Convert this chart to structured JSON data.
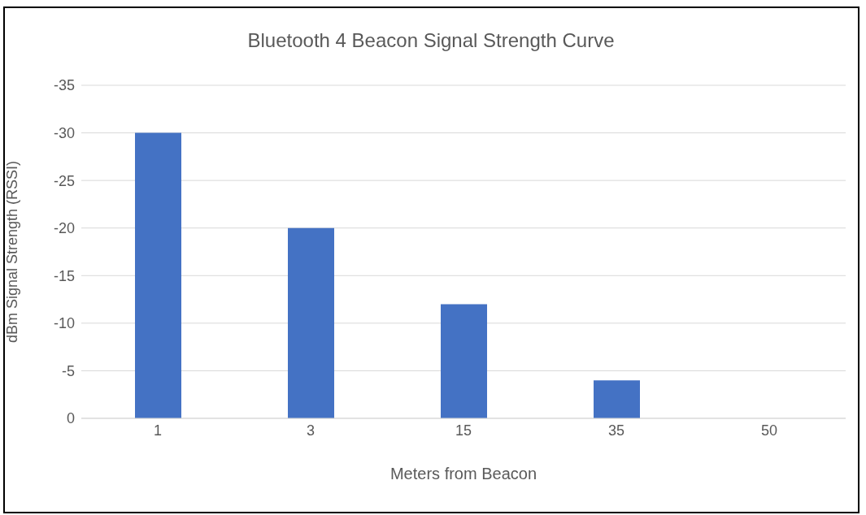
{
  "chart_data": {
    "type": "bar",
    "title": "Bluetooth 4 Beacon Signal Strength Curve",
    "xlabel": "Meters from Beacon",
    "ylabel": "dBm Signal Strength (RSSI)",
    "categories": [
      "1",
      "3",
      "15",
      "35",
      "50"
    ],
    "values": [
      -30,
      -20,
      -12,
      -4,
      null
    ],
    "color": "#4472c4",
    "ylim": [
      0,
      -35
    ],
    "yticks": [
      0,
      -5,
      -10,
      -15,
      -20,
      -25,
      -30,
      -35
    ],
    "grid": "y"
  }
}
